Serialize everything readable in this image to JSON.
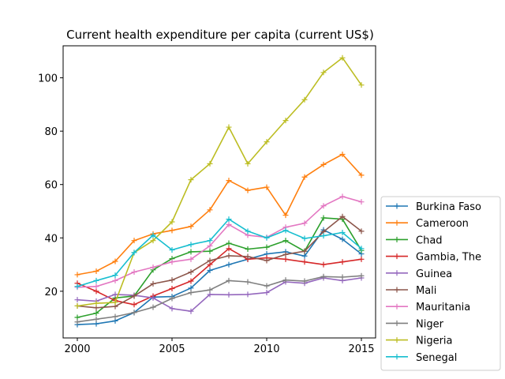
{
  "chart_data": {
    "type": "line",
    "title": "Current health expenditure per capita (current US$)",
    "xlabel": "",
    "ylabel": "",
    "xlim": [
      1999.25,
      2015.75
    ],
    "ylim": [
      2.5,
      112
    ],
    "xticks": [
      2000,
      2005,
      2010,
      2015
    ],
    "yticks": [
      20,
      40,
      60,
      80,
      100
    ],
    "grid": false,
    "legend_position": "outside-right-bottom",
    "x": [
      2000,
      2001,
      2002,
      2003,
      2004,
      2005,
      2006,
      2007,
      2008,
      2009,
      2010,
      2011,
      2012,
      2013,
      2014,
      2015
    ],
    "series": [
      {
        "name": "Burkina Faso",
        "color": "#1f77b4",
        "values": [
          7.5,
          7.8,
          8.9,
          12.0,
          17.8,
          18.0,
          21.2,
          27.8,
          30.0,
          32.0,
          34.0,
          34.8,
          33.2,
          43.0,
          39.5,
          34.0
        ]
      },
      {
        "name": "Cameroon",
        "color": "#ff7f0e",
        "values": [
          26.2,
          27.5,
          31.2,
          39.0,
          41.5,
          42.8,
          44.3,
          50.5,
          61.5,
          57.8,
          59.0,
          48.5,
          62.8,
          67.5,
          71.3,
          63.5
        ]
      },
      {
        "name": "Chad",
        "color": "#2ca02c",
        "values": [
          10.2,
          11.8,
          17.5,
          18.2,
          28.0,
          32.2,
          34.8,
          35.0,
          38.0,
          35.8,
          36.5,
          39.0,
          35.0,
          47.5,
          47.0,
          35.3
        ]
      },
      {
        "name": "Gambia, The",
        "color": "#d62728",
        "values": [
          23.0,
          20.0,
          16.5,
          15.0,
          18.2,
          21.0,
          23.8,
          30.0,
          36.0,
          32.0,
          32.5,
          32.0,
          31.0,
          30.0,
          31.0,
          32.0
        ]
      },
      {
        "name": "Guinea",
        "color": "#9467bd",
        "values": [
          16.8,
          16.3,
          18.8,
          18.5,
          17.5,
          13.5,
          12.5,
          18.8,
          18.7,
          18.8,
          19.5,
          23.5,
          23.0,
          25.0,
          24.0,
          25.0
        ]
      },
      {
        "name": "Mali",
        "color": "#8c564b",
        "values": [
          14.5,
          13.8,
          14.3,
          18.2,
          22.8,
          24.2,
          27.2,
          31.5,
          33.3,
          33.0,
          31.5,
          33.8,
          35.0,
          42.3,
          48.0,
          42.5
        ]
      },
      {
        "name": "Mauritania",
        "color": "#e377c2",
        "values": [
          21.5,
          21.8,
          24.0,
          27.2,
          29.0,
          31.0,
          32.0,
          37.0,
          45.0,
          41.0,
          40.2,
          44.0,
          45.5,
          52.0,
          55.5,
          53.5
        ]
      },
      {
        "name": "Niger",
        "color": "#7f7f7f",
        "values": [
          8.5,
          9.5,
          10.5,
          12.0,
          14.0,
          17.3,
          19.5,
          20.5,
          24.0,
          23.5,
          22.0,
          24.2,
          23.8,
          25.5,
          25.3,
          25.8
        ]
      },
      {
        "name": "Nigeria",
        "color": "#bcbd22",
        "values": [
          14.5,
          15.5,
          15.8,
          34.5,
          39.0,
          46.0,
          61.8,
          67.8,
          81.5,
          67.8,
          76.0,
          84.0,
          91.8,
          102.0,
          107.5,
          97.3
        ]
      },
      {
        "name": "Senegal",
        "color": "#17becf",
        "values": [
          21.8,
          24.0,
          26.0,
          34.5,
          41.0,
          35.5,
          37.5,
          39.0,
          47.0,
          42.5,
          40.0,
          42.8,
          39.8,
          40.8,
          42.0,
          36.0
        ]
      }
    ]
  }
}
